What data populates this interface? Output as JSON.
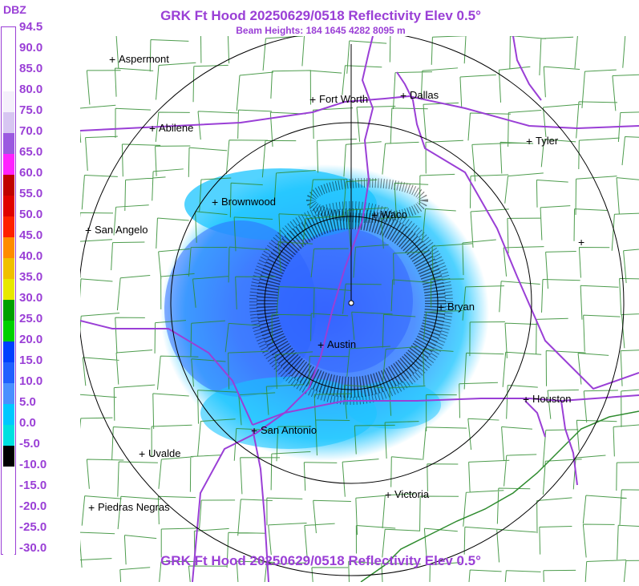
{
  "header": {
    "title": "GRK Ft Hood 20250629/0518 Reflectivity Elev 0.5°",
    "subtitle": "Beam Heights: 184 1645 4282 8095 m",
    "footer_title": "GRK Ft Hood 20250629/0518 Reflectivity Elev 0.5°"
  },
  "legend": {
    "unit": "DBZ",
    "stops": [
      {
        "label": "94.5",
        "color": "#ffffff"
      },
      {
        "label": "90.0",
        "color": "#ffffff"
      },
      {
        "label": "85.0",
        "color": "#ffffff"
      },
      {
        "label": "80.0",
        "color": "#f4f0fb"
      },
      {
        "label": "75.0",
        "color": "#d7c6f2"
      },
      {
        "label": "70.0",
        "color": "#9b59e0"
      },
      {
        "label": "65.0",
        "color": "#ff22ff"
      },
      {
        "label": "60.0",
        "color": "#c00000"
      },
      {
        "label": "55.0",
        "color": "#e00000"
      },
      {
        "label": "50.0",
        "color": "#ff2000"
      },
      {
        "label": "45.0",
        "color": "#ff8c00"
      },
      {
        "label": "40.0",
        "color": "#f0c000"
      },
      {
        "label": "35.0",
        "color": "#e8e800"
      },
      {
        "label": "30.0",
        "color": "#00a000"
      },
      {
        "label": "25.0",
        "color": "#00d000"
      },
      {
        "label": "20.0",
        "color": "#0040ff"
      },
      {
        "label": "15.0",
        "color": "#2060ff"
      },
      {
        "label": "10.0",
        "color": "#4a90ff"
      },
      {
        "label": "5.0",
        "color": "#00c8ff"
      },
      {
        "label": "0.0",
        "color": "#00e0e0"
      },
      {
        "label": "-5.0",
        "color": "#000000"
      },
      {
        "label": "-10.0",
        "color": "#ffffff"
      },
      {
        "label": "-15.0",
        "color": "#ffffff"
      },
      {
        "label": "-20.0",
        "color": "#ffffff"
      },
      {
        "label": "-25.0",
        "color": "#ffffff"
      },
      {
        "label": "-30.0",
        "color": "#ffffff"
      }
    ]
  },
  "map": {
    "cities": [
      {
        "name": "Aspermont"
      },
      {
        "name": "Fort Worth"
      },
      {
        "name": "Dallas"
      },
      {
        "name": "Abilene"
      },
      {
        "name": "Tyler"
      },
      {
        "name": "Brownwood"
      },
      {
        "name": "Waco"
      },
      {
        "name": "San Angelo"
      },
      {
        "name": "Bryan"
      },
      {
        "name": "Austin"
      },
      {
        "name": "Houston"
      },
      {
        "name": "San Antonio"
      },
      {
        "name": "Uvalde"
      },
      {
        "name": "Victoria"
      },
      {
        "name": "Piedras Negras"
      },
      {
        "name": ""
      }
    ],
    "colors": {
      "county_lines": "#2e8b2e",
      "highways": "#9a3fd6",
      "range_rings": "#000000",
      "reflectivity_light": "#00c8ff",
      "reflectivity_dark": "#2060ff",
      "clutter": "#000000"
    }
  }
}
